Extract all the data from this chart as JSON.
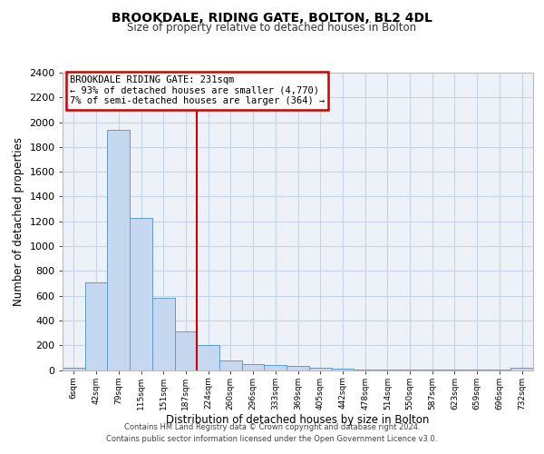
{
  "title": "BROOKDALE, RIDING GATE, BOLTON, BL2 4DL",
  "subtitle": "Size of property relative to detached houses in Bolton",
  "xlabel": "Distribution of detached houses by size in Bolton",
  "ylabel": "Number of detached properties",
  "footer_line1": "Contains HM Land Registry data © Crown copyright and database right 2024.",
  "footer_line2": "Contains public sector information licensed under the Open Government Licence v3.0.",
  "bin_labels": [
    "6sqm",
    "42sqm",
    "79sqm",
    "115sqm",
    "151sqm",
    "187sqm",
    "224sqm",
    "260sqm",
    "296sqm",
    "333sqm",
    "369sqm",
    "405sqm",
    "442sqm",
    "478sqm",
    "514sqm",
    "550sqm",
    "587sqm",
    "623sqm",
    "659sqm",
    "696sqm",
    "732sqm"
  ],
  "bar_heights": [
    20,
    710,
    1940,
    1230,
    580,
    310,
    200,
    80,
    50,
    40,
    30,
    15,
    10,
    5,
    5,
    5,
    5,
    5,
    5,
    5,
    20
  ],
  "bar_color": "#c5d8f0",
  "bar_edge_color": "#5b9bd5",
  "ylim_max": 2400,
  "ytick_step": 200,
  "vline_bin_index": 6.0,
  "annotation_title": "BROOKDALE RIDING GATE: 231sqm",
  "annotation_line1": "← 93% of detached houses are smaller (4,770)",
  "annotation_line2": "7% of semi-detached houses are larger (364) →",
  "vline_color": "#cc0000",
  "grid_color": "#c8d4e8",
  "background_color": "#edf1f8"
}
